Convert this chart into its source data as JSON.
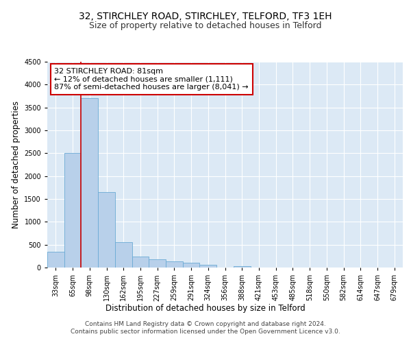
{
  "title": "32, STIRCHLEY ROAD, STIRCHLEY, TELFORD, TF3 1EH",
  "subtitle": "Size of property relative to detached houses in Telford",
  "xlabel": "Distribution of detached houses by size in Telford",
  "ylabel": "Number of detached properties",
  "footer_line1": "Contains HM Land Registry data © Crown copyright and database right 2024.",
  "footer_line2": "Contains public sector information licensed under the Open Government Licence v3.0.",
  "bar_labels": [
    "33sqm",
    "65sqm",
    "98sqm",
    "130sqm",
    "162sqm",
    "195sqm",
    "227sqm",
    "259sqm",
    "291sqm",
    "324sqm",
    "356sqm",
    "388sqm",
    "421sqm",
    "453sqm",
    "485sqm",
    "518sqm",
    "550sqm",
    "582sqm",
    "614sqm",
    "647sqm",
    "679sqm"
  ],
  "bar_values": [
    350,
    2500,
    3700,
    1650,
    560,
    240,
    175,
    135,
    100,
    60,
    0,
    30,
    0,
    0,
    0,
    0,
    0,
    0,
    0,
    0,
    0
  ],
  "bar_color": "#b8d0ea",
  "bar_edge_color": "#6aaad4",
  "ylim": [
    0,
    4500
  ],
  "yticks": [
    0,
    500,
    1000,
    1500,
    2000,
    2500,
    3000,
    3500,
    4000,
    4500
  ],
  "red_line_x": 1.5,
  "annotation_text_line1": "32 STIRCHLEY ROAD: 81sqm",
  "annotation_text_line2": "← 12% of detached houses are smaller (1,111)",
  "annotation_text_line3": "87% of semi-detached houses are larger (8,041) →",
  "annotation_box_color": "#ffffff",
  "annotation_box_edge_color": "#cc0000",
  "background_color": "#dce9f5",
  "grid_color": "#ffffff",
  "title_fontsize": 10,
  "subtitle_fontsize": 9,
  "axis_label_fontsize": 8.5,
  "tick_fontsize": 7,
  "annotation_fontsize": 8,
  "footer_fontsize": 6.5
}
